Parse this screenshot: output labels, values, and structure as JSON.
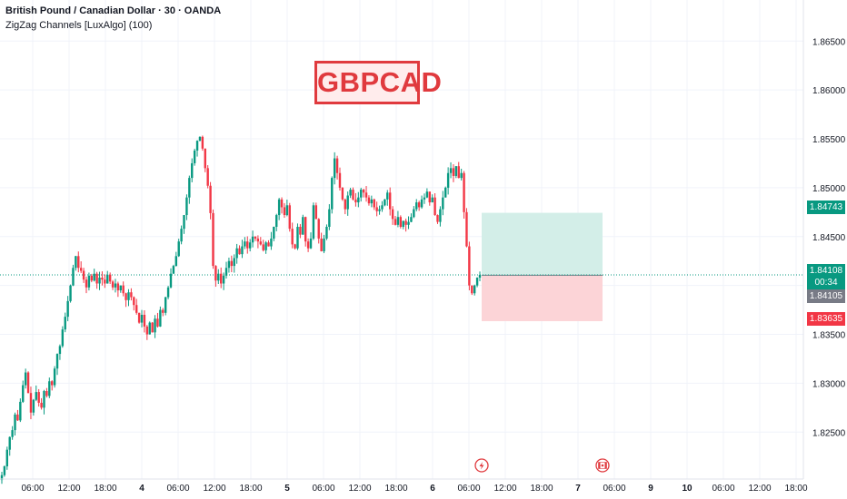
{
  "header": {
    "symbol_line": "British Pound / Canadian Dollar · 30 · OANDA",
    "indicator_line": "ZigZag Channels [LuxAlgo] (100)"
  },
  "annotation": {
    "tag": "GBPCAD"
  },
  "colors": {
    "up": "#089981",
    "down": "#f23645",
    "target_zone": "#d3eee8",
    "stop_zone": "#fcd4d7",
    "tag": "#e03a3e",
    "price_line": "#089981"
  },
  "price_labels": {
    "target": "1.84743",
    "current": "1.84108",
    "countdown": "00:34",
    "entry": "1.84105",
    "stop": "1.83635"
  },
  "chart_data": {
    "type": "candlestick",
    "y_axis": {
      "range": [
        1.8202,
        1.8692
      ],
      "ticks": [
        "1.82500",
        "1.83000",
        "1.83500",
        "1.84000",
        "1.84500",
        "1.85000",
        "1.85500",
        "1.86000",
        "1.86500"
      ]
    },
    "x_axis": {
      "ticks": [
        "06:00",
        "12:00",
        "18:00",
        "4",
        "06:00",
        "12:00",
        "18:00",
        "5",
        "06:00",
        "12:00",
        "18:00",
        "6",
        "06:00",
        "12:00",
        "18:00",
        "7",
        "06:00",
        "9",
        "10",
        "06:00",
        "12:00",
        "18:00"
      ]
    },
    "position": {
      "type": "long",
      "entry": 1.84105,
      "target": 1.84743,
      "stop": 1.83635
    },
    "current_price": 1.84108,
    "closes": [
      1.8206,
      1.8215,
      1.8232,
      1.8245,
      1.8252,
      1.8268,
      1.8262,
      1.8281,
      1.8298,
      1.8311,
      1.829,
      1.827,
      1.8283,
      1.8291,
      1.828,
      1.8275,
      1.8292,
      1.8287,
      1.8302,
      1.8298,
      1.8315,
      1.833,
      1.8338,
      1.8355,
      1.8368,
      1.8384,
      1.84,
      1.8418,
      1.843,
      1.8418,
      1.8415,
      1.8406,
      1.8398,
      1.841,
      1.8405,
      1.8412,
      1.8402,
      1.8408,
      1.8406,
      1.8402,
      1.8411,
      1.8404,
      1.8398,
      1.8402,
      1.8395,
      1.84,
      1.8392,
      1.8385,
      1.8393,
      1.8388,
      1.838,
      1.8372,
      1.8362,
      1.837,
      1.8358,
      1.835,
      1.8362,
      1.8352,
      1.8366,
      1.8358,
      1.8375,
      1.8372,
      1.8388,
      1.8398,
      1.8412,
      1.842,
      1.843,
      1.8445,
      1.8458,
      1.8472,
      1.849,
      1.851,
      1.8525,
      1.8538,
      1.8548,
      1.8552,
      1.854,
      1.852,
      1.8502,
      1.8474,
      1.842,
      1.8405,
      1.8412,
      1.8402,
      1.841,
      1.8418,
      1.8425,
      1.842,
      1.8428,
      1.8438,
      1.8432,
      1.844,
      1.8445,
      1.8438,
      1.8444,
      1.845,
      1.8448,
      1.8445,
      1.8442,
      1.8436,
      1.8444,
      1.844,
      1.8448,
      1.846,
      1.8472,
      1.8488,
      1.848,
      1.8472,
      1.8482,
      1.8458,
      1.8442,
      1.8438,
      1.846,
      1.8452,
      1.847,
      1.8445,
      1.8438,
      1.8448,
      1.8482,
      1.8468,
      1.8448,
      1.8435,
      1.8448,
      1.846,
      1.8478,
      1.851,
      1.853,
      1.8515,
      1.85,
      1.8488,
      1.8478,
      1.8492,
      1.8498,
      1.8488,
      1.8485,
      1.849,
      1.8498,
      1.8495,
      1.849,
      1.8484,
      1.8488,
      1.848,
      1.8476,
      1.8478,
      1.8482,
      1.8488,
      1.8495,
      1.8478,
      1.8468,
      1.8462,
      1.847,
      1.846,
      1.8466,
      1.8462,
      1.8465,
      1.847,
      1.8478,
      1.8485,
      1.848,
      1.8488,
      1.849,
      1.8496,
      1.8485,
      1.849,
      1.8472,
      1.8465,
      1.8478,
      1.849,
      1.85,
      1.8515,
      1.852,
      1.8512,
      1.8522,
      1.851,
      1.8515,
      1.8475,
      1.844,
      1.84,
      1.8392,
      1.84,
      1.8408,
      1.84108
    ]
  }
}
